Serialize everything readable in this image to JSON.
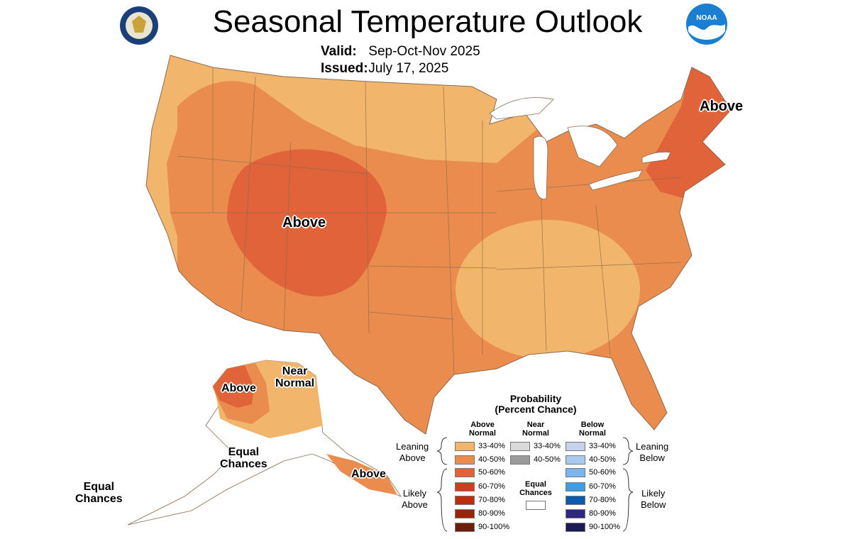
{
  "header": {
    "title": "Seasonal Temperature Outlook",
    "valid_label": "Valid:",
    "valid_value": "Sep-Oct-Nov 2025",
    "issued_label": "Issued:",
    "issued_value": "July 17, 2025",
    "logo_left": "Department of Commerce seal",
    "logo_right": "NOAA"
  },
  "map": {
    "labels": {
      "conus_west": "Above",
      "northeast": "Above",
      "alaska_west": "Above",
      "alaska_near1": "Near",
      "alaska_near2": "Normal",
      "alaska_ec1": "Equal",
      "alaska_ec2": "Chances",
      "alaska_se": "Above",
      "aleutian_ec1": "Equal",
      "aleutian_ec2": "Chances"
    },
    "colors": {
      "above_33_40": "#f2b56c",
      "above_40_50": "#e98c4e",
      "above_50_60": "#e0633a",
      "border": "#8a6a50"
    }
  },
  "legend": {
    "title1": "Probability",
    "title2": "(Percent Chance)",
    "col_above": [
      "Above",
      "Normal"
    ],
    "col_near": [
      "Near",
      "Normal"
    ],
    "col_below": [
      "Below",
      "Normal"
    ],
    "leaning_above": [
      "Leaning",
      "Above"
    ],
    "likely_above": [
      "Likely",
      "Above"
    ],
    "leaning_below": [
      "Leaning",
      "Below"
    ],
    "likely_below": [
      "Likely",
      "Below"
    ],
    "equal_chances": [
      "Equal",
      "Chances"
    ],
    "above": [
      {
        "range": "33-40%",
        "color": "#f2b56c"
      },
      {
        "range": "40-50%",
        "color": "#e98c4e"
      },
      {
        "range": "50-60%",
        "color": "#e0633a"
      },
      {
        "range": "60-70%",
        "color": "#d23d22"
      },
      {
        "range": "70-80%",
        "color": "#bb2d0c"
      },
      {
        "range": "80-90%",
        "color": "#992508"
      },
      {
        "range": "90-100%",
        "color": "#6b1f0b"
      }
    ],
    "near": [
      {
        "range": "33-40%",
        "color": "#d9d9d9"
      },
      {
        "range": "40-50%",
        "color": "#9a9a9a"
      }
    ],
    "below": [
      {
        "range": "33-40%",
        "color": "#c6d2ea"
      },
      {
        "range": "40-50%",
        "color": "#a9c9ee"
      },
      {
        "range": "50-60%",
        "color": "#7ab5ef"
      },
      {
        "range": "60-70%",
        "color": "#3c9fe4"
      },
      {
        "range": "70-80%",
        "color": "#0a5aae"
      },
      {
        "range": "80-90%",
        "color": "#2d2780"
      },
      {
        "range": "90-100%",
        "color": "#1b1a55"
      }
    ]
  }
}
